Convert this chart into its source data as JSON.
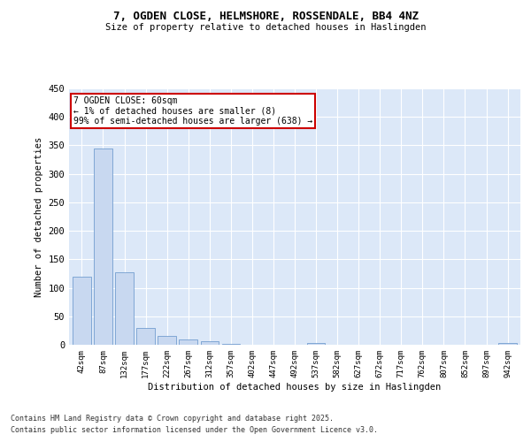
{
  "title_line1": "7, OGDEN CLOSE, HELMSHORE, ROSSENDALE, BB4 4NZ",
  "title_line2": "Size of property relative to detached houses in Haslingden",
  "xlabel": "Distribution of detached houses by size in Haslingden",
  "ylabel": "Number of detached properties",
  "categories": [
    "42sqm",
    "87sqm",
    "132sqm",
    "177sqm",
    "222sqm",
    "267sqm",
    "312sqm",
    "357sqm",
    "402sqm",
    "447sqm",
    "492sqm",
    "537sqm",
    "582sqm",
    "627sqm",
    "672sqm",
    "717sqm",
    "762sqm",
    "807sqm",
    "852sqm",
    "897sqm",
    "942sqm"
  ],
  "values": [
    120,
    345,
    127,
    29,
    15,
    9,
    6,
    2,
    0,
    0,
    0,
    3,
    0,
    0,
    0,
    0,
    0,
    0,
    0,
    0,
    3
  ],
  "bar_color": "#c8d8f0",
  "bar_edge_color": "#6090c8",
  "annotation_text": "7 OGDEN CLOSE: 60sqm\n← 1% of detached houses are smaller (8)\n99% of semi-detached houses are larger (638) →",
  "ylim": [
    0,
    450
  ],
  "yticks": [
    0,
    50,
    100,
    150,
    200,
    250,
    300,
    350,
    400,
    450
  ],
  "background_color": "#dce8f8",
  "grid_color": "#ffffff",
  "footer_line1": "Contains HM Land Registry data © Crown copyright and database right 2025.",
  "footer_line2": "Contains public sector information licensed under the Open Government Licence v3.0."
}
